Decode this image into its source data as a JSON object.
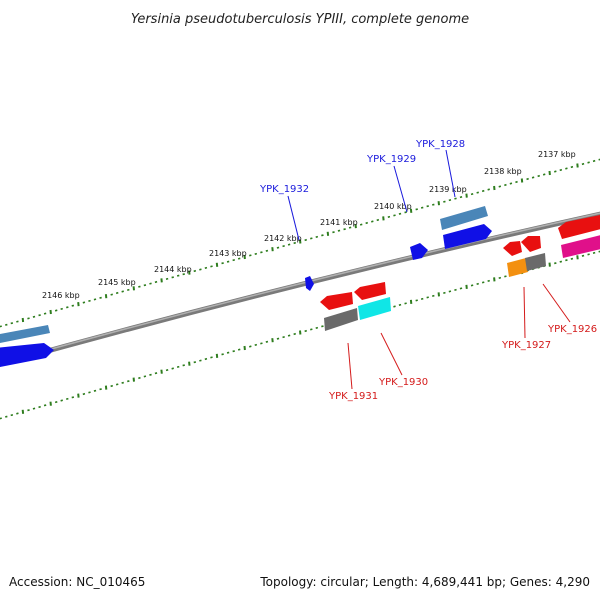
{
  "title": "Yersinia pseudotuberculosis YPIII, complete genome",
  "footer": {
    "accession": "Accession: NC_010465",
    "summary": "Topology: circular; Length: 4,689,441 bp; Genes: 4,290"
  },
  "ticks": [
    "2146 kbp",
    "2145 kbp",
    "2144 kbp",
    "2143 kbp",
    "2142 kbp",
    "2141 kbp",
    "2140 kbp",
    "2139 kbp",
    "2138 kbp",
    "2137 kbp"
  ],
  "genes": {
    "forward": [
      "YPK_1932",
      "YPK_1929",
      "YPK_1928"
    ],
    "reverse": [
      "YPK_1931",
      "YPK_1930",
      "YPK_1927",
      "YPK_1926"
    ]
  },
  "colors": {
    "forward_label": "#1a1adc",
    "reverse_label": "#d41a1a",
    "tick": "#2e7d1e",
    "backbone": "#888888",
    "gene_blue": "#1010e6",
    "gene_steel": "#4a86b8",
    "gene_red": "#e81010",
    "gene_grey": "#6a6a6a",
    "gene_cyan": "#10e6e6",
    "gene_orange": "#f39010",
    "gene_magenta": "#e0108a"
  }
}
